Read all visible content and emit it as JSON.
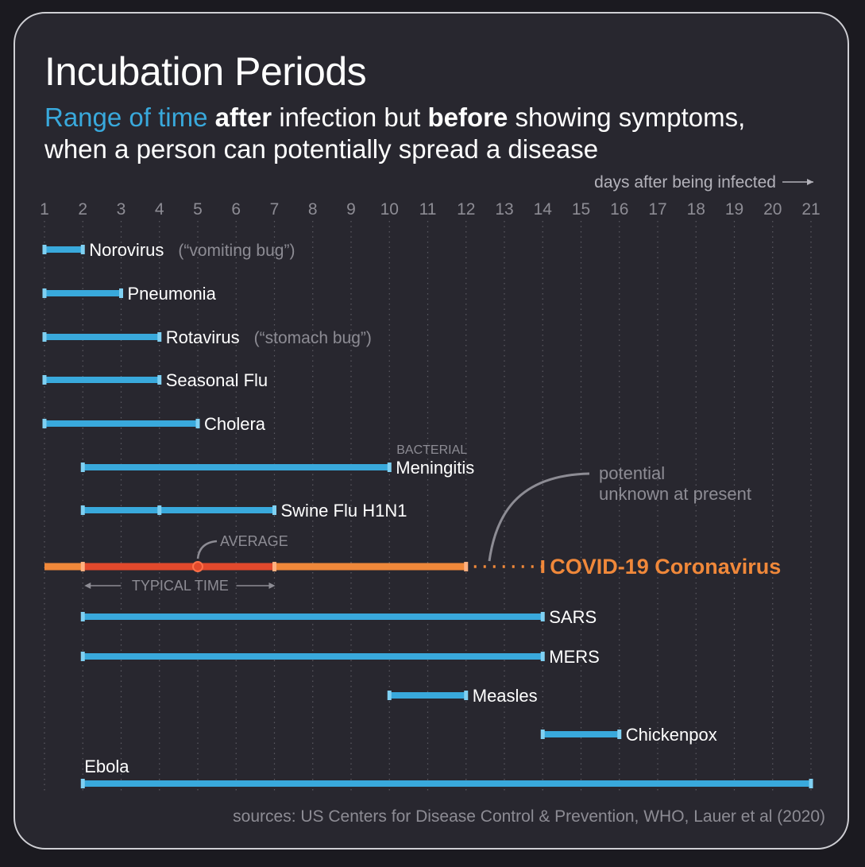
{
  "title": "Incubation Periods",
  "subtitle": {
    "part1": "Range of time ",
    "part2": "after",
    "part3": " infection but ",
    "part4": "before",
    "part5": " showing symptoms,",
    "line2": "when a person can potentially spread a disease"
  },
  "source": "sources: US Centers for Disease Control & Prevention, WHO, Lauer et al (2020)",
  "colors": {
    "bar": "#39a9dc",
    "covid_range": "#f0883a",
    "covid_typical": "#e2492c",
    "background": "#28272f",
    "grid": "#5c5b63",
    "text": "#ffffff",
    "muted": "#8d8c94"
  },
  "chart_data": {
    "type": "bar",
    "orientation": "horizontal-range",
    "title": "Incubation Periods",
    "xlabel": "days after being infected",
    "xticks": [
      1,
      2,
      3,
      4,
      5,
      6,
      7,
      8,
      9,
      10,
      11,
      12,
      13,
      14,
      15,
      16,
      17,
      18,
      19,
      20,
      21
    ],
    "xlim": [
      1,
      21
    ],
    "grid": true,
    "series": [
      {
        "name": "Norovirus",
        "note": "(“vomiting bug”)",
        "start": 1,
        "end": 2
      },
      {
        "name": "Pneumonia",
        "start": 1,
        "end": 3
      },
      {
        "name": "Rotavirus",
        "note": "(“stomach bug”)",
        "start": 1,
        "end": 4
      },
      {
        "name": "Seasonal Flu",
        "start": 1,
        "end": 4
      },
      {
        "name": "Cholera",
        "start": 1,
        "end": 5
      },
      {
        "name": "Meningitis",
        "prefix": "BACTERIAL",
        "start": 2,
        "end": 10
      },
      {
        "name": "Swine Flu H1N1",
        "start": 2,
        "end": 7,
        "mid": 4
      },
      {
        "name": "COVID-19 Coronavirus",
        "start": 1,
        "end": 12,
        "potential_end": 14,
        "typical_start": 2,
        "typical_end": 7,
        "average": 5
      },
      {
        "name": "SARS",
        "start": 2,
        "end": 14
      },
      {
        "name": "MERS",
        "start": 2,
        "end": 14
      },
      {
        "name": "Measles",
        "start": 10,
        "end": 12
      },
      {
        "name": "Chickenpox",
        "start": 14,
        "end": 16
      },
      {
        "name": "Ebola",
        "start": 2,
        "end": 21
      }
    ],
    "annotations": {
      "average": "AVERAGE",
      "typical": "TYPICAL TIME",
      "potential_line1": "potential",
      "potential_line2": "unknown at present"
    }
  }
}
